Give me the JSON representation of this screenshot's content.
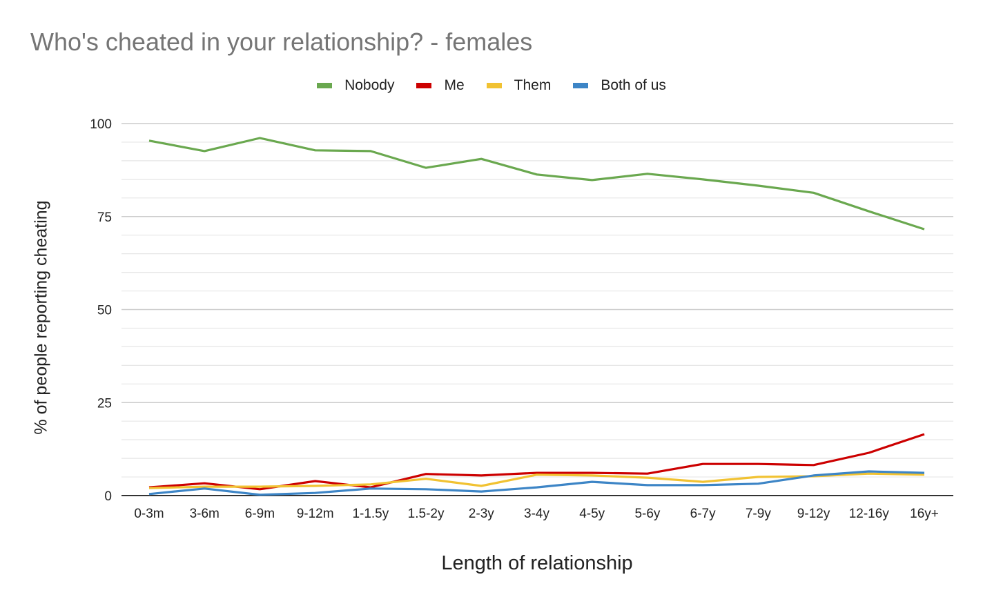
{
  "chart_data": {
    "type": "line",
    "title": "Who's cheated in your relationship? - females",
    "xlabel": "Length of relationship",
    "ylabel": "% of people reporting cheating",
    "ylim": [
      0,
      100
    ],
    "yticks": [
      0,
      25,
      50,
      75,
      100
    ],
    "grid": true,
    "legend_position": "top",
    "categories": [
      "0-3m",
      "3-6m",
      "6-9m",
      "9-12m",
      "1-1.5y",
      "1.5-2y",
      "2-3y",
      "3-4y",
      "4-5y",
      "5-6y",
      "6-7y",
      "7-9y",
      "9-12y",
      "12-16y",
      "16y+"
    ],
    "series": [
      {
        "name": "Nobody",
        "color": "#6aa84f",
        "values": [
          95.4,
          92.6,
          96.1,
          92.8,
          92.6,
          88.1,
          90.5,
          86.3,
          84.8,
          86.5,
          85.0,
          83.3,
          81.4,
          76.4,
          71.6
        ]
      },
      {
        "name": "Me",
        "color": "#cc0000",
        "values": [
          2.2,
          3.3,
          1.7,
          3.9,
          2.2,
          5.8,
          5.4,
          6.1,
          6.1,
          5.9,
          8.5,
          8.5,
          8.2,
          11.5,
          16.5
        ]
      },
      {
        "name": "Them",
        "color": "#f1c232",
        "values": [
          2.0,
          2.4,
          2.4,
          2.6,
          3.0,
          4.5,
          2.6,
          5.6,
          5.4,
          4.8,
          3.7,
          5.0,
          5.2,
          5.9,
          5.6
        ]
      },
      {
        "name": "Both of us",
        "color": "#3d85c6",
        "values": [
          0.4,
          1.9,
          0.2,
          0.7,
          1.9,
          1.7,
          1.1,
          2.2,
          3.7,
          2.8,
          2.8,
          3.2,
          5.4,
          6.5,
          6.1
        ]
      }
    ]
  }
}
